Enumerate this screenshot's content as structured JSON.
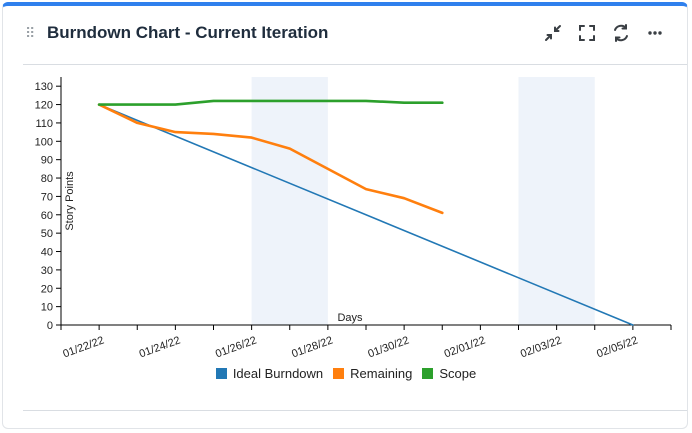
{
  "header": {
    "title": "Burndown Chart - Current Iteration"
  },
  "icons": {
    "drag": "drag-handle-icon",
    "collapse": "collapse-icon",
    "fullscreen": "fullscreen-icon",
    "refresh": "refresh-icon",
    "more": "more-icon"
  },
  "colors": {
    "ideal": "#2278b5",
    "remaining": "#ff7f0e",
    "scope": "#2ca02c",
    "weekend": "#eef3fa",
    "accent": "#2f80ed"
  },
  "chart_data": {
    "type": "line",
    "xlabel": "Days",
    "ylabel": "Story Points",
    "ylim": [
      0,
      135
    ],
    "yticks": [
      0,
      10,
      20,
      30,
      40,
      50,
      60,
      70,
      80,
      90,
      100,
      110,
      120,
      130
    ],
    "xlim": [
      "2022-01-21",
      "2022-02-06"
    ],
    "xtick_labels": [
      "01/22/22",
      "01/24/22",
      "01/26/22",
      "01/28/22",
      "01/30/22",
      "02/01/22",
      "02/03/22",
      "02/05/22"
    ],
    "xtick_dates": [
      "2022-01-22",
      "2022-01-24",
      "2022-01-26",
      "2022-01-28",
      "2022-01-30",
      "2022-02-01",
      "2022-02-03",
      "2022-02-05"
    ],
    "weekend_bands": [
      [
        "2022-01-26",
        "2022-01-28"
      ],
      [
        "2022-02-02",
        "2022-02-04"
      ]
    ],
    "grid": false,
    "legend_position": "bottom",
    "series": [
      {
        "name": "Ideal Burndown",
        "x": [
          "2022-01-22",
          "2022-02-05"
        ],
        "y": [
          120,
          0
        ]
      },
      {
        "name": "Remaining",
        "x": [
          "2022-01-22",
          "2022-01-23",
          "2022-01-24",
          "2022-01-25",
          "2022-01-26",
          "2022-01-27",
          "2022-01-28",
          "2022-01-29",
          "2022-01-30",
          "2022-01-31",
          "2022-02-01"
        ],
        "y": [
          120,
          110,
          105,
          104,
          102,
          96,
          85,
          74,
          69,
          61,
          null
        ]
      },
      {
        "name": "Scope",
        "x": [
          "2022-01-22",
          "2022-01-23",
          "2022-01-24",
          "2022-01-25",
          "2022-01-26",
          "2022-01-27",
          "2022-01-28",
          "2022-01-29",
          "2022-01-30",
          "2022-01-31"
        ],
        "y": [
          120,
          120,
          120,
          122,
          122,
          122,
          122,
          122,
          121,
          121
        ]
      }
    ]
  }
}
